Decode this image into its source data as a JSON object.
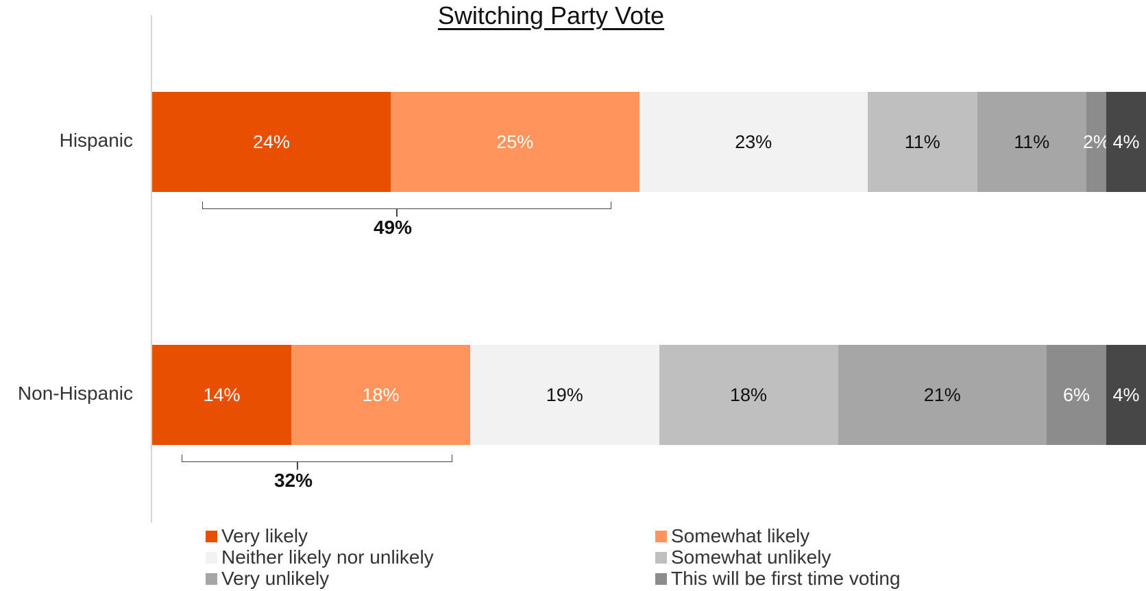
{
  "chart_data": {
    "type": "bar",
    "orientation": "horizontal",
    "stacked": true,
    "title": "Switching Party Vote",
    "categories": [
      "Hispanic",
      "Non-Hispanic"
    ],
    "series": [
      {
        "name": "Very likely",
        "color": "#E84F00",
        "label_color": "#ffffff",
        "values": [
          24,
          14
        ]
      },
      {
        "name": "Somewhat likely",
        "color": "#FF955C",
        "label_color": "#ffffff",
        "values": [
          25,
          18
        ]
      },
      {
        "name": "Neither likely nor unlikely",
        "color": "#F2F2F2",
        "label_color": "#111111",
        "values": [
          23,
          19
        ]
      },
      {
        "name": "Somewhat unlikely",
        "color": "#BFBFBF",
        "label_color": "#111111",
        "values": [
          11,
          18
        ]
      },
      {
        "name": "Very unlikely",
        "color": "#A6A6A6",
        "label_color": "#111111",
        "values": [
          11,
          21
        ]
      },
      {
        "name": "This will be first time voting",
        "color": "#8C8C8C",
        "label_color": "#ffffff",
        "values": [
          2,
          6
        ]
      },
      {
        "name": "",
        "color": "#474747",
        "label_color": "#ffffff",
        "values": [
          4,
          4
        ]
      }
    ],
    "data_labels": [
      [
        "24%",
        "25%",
        "23%",
        "11%",
        "11%",
        "2%",
        "4%"
      ],
      [
        "14%",
        "18%",
        "19%",
        "18%",
        "21%",
        "6%",
        "4%"
      ]
    ],
    "brackets": [
      {
        "category": "Hispanic",
        "label": "49%"
      },
      {
        "category": "Non-Hispanic",
        "label": "32%"
      }
    ],
    "legend_position": "bottom",
    "grid": false
  }
}
